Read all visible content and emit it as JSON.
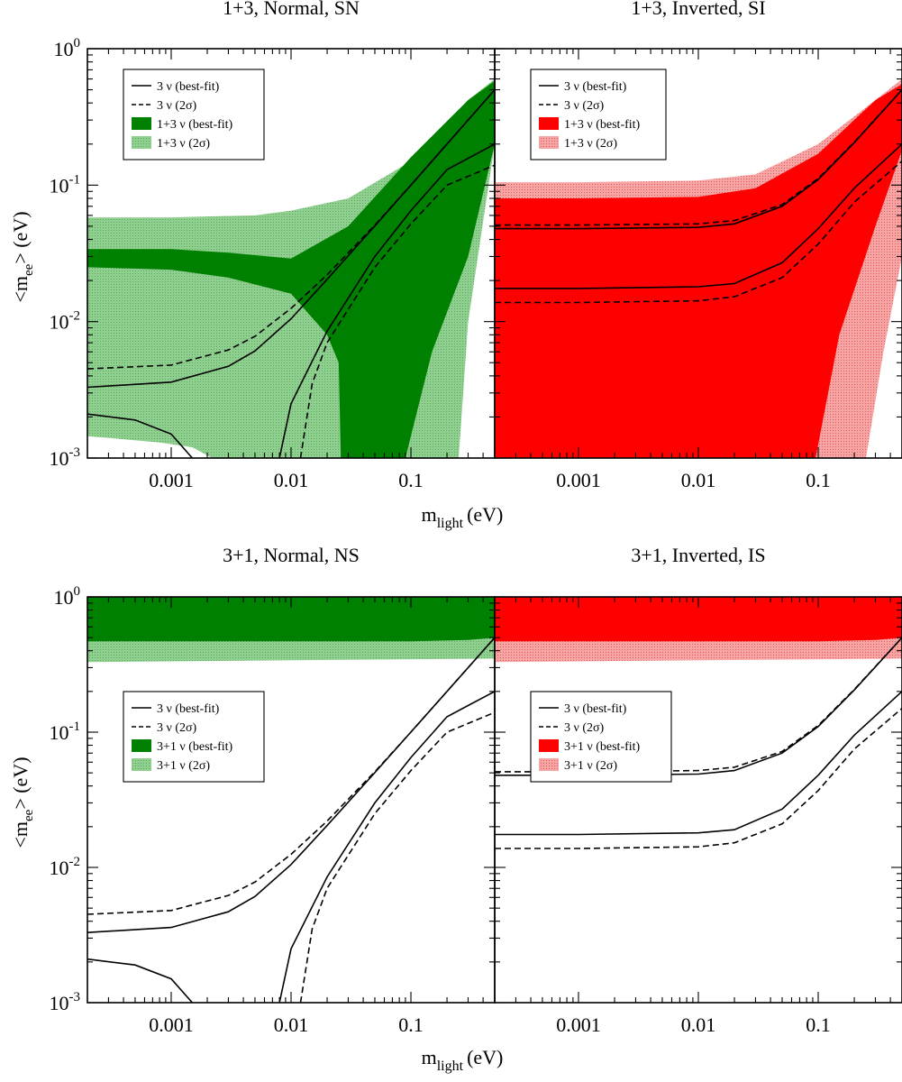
{
  "colors": {
    "green_dark": "#008000",
    "green_light": "#8fcf8f",
    "red_dark": "#ff0000",
    "red_light": "#f7a4a4"
  },
  "figure": {
    "xlabel_main": "m",
    "xlabel_sub": "light",
    "xlabel_unit": "(eV)",
    "ylabel_main": "<m",
    "ylabel_sub": "ee",
    "ylabel_unit": "> (eV)"
  },
  "chart_data": [
    {
      "type": "area",
      "title": "1+3, Normal, SN",
      "xscale": "log",
      "yscale": "log",
      "xlim": [
        0.0002,
        0.5
      ],
      "ylim": [
        0.001,
        1
      ],
      "xticks": [
        "0.001",
        "0.01",
        "0.1"
      ],
      "yticks": [
        {
          "base": "10",
          "exp": "-3"
        },
        {
          "base": "10",
          "exp": "-2"
        },
        {
          "base": "10",
          "exp": "-1"
        },
        {
          "base": "10",
          "exp": "0"
        }
      ],
      "legend": {
        "position": "top-left",
        "entries": [
          "3 ν (best-fit)",
          "3 ν (2σ)",
          "1+3 ν (best-fit)",
          "1+3 ν (2σ)"
        ]
      },
      "fill": "green",
      "bands": {
        "light_2sigma": {
          "x": [
            0.0002,
            0.001,
            0.005,
            0.01,
            0.03,
            0.1,
            0.2,
            0.3,
            0.5
          ],
          "upper": [
            0.058,
            0.058,
            0.06,
            0.065,
            0.08,
            0.15,
            0.28,
            0.42,
            0.6
          ],
          "gap_upper": [
            0.0014,
            0.0012,
            0.001,
            0.001,
            0.001,
            0.001,
            0.001,
            0.001,
            0.001
          ],
          "gap_x_end": 0.003,
          "right_edge_at_floor": 0.25
        },
        "dark_bestfit": {
          "x": [
            0.0002,
            0.001,
            0.003,
            0.01,
            0.03,
            0.1,
            0.3,
            0.5
          ],
          "upper": [
            0.034,
            0.034,
            0.032,
            0.029,
            0.05,
            0.16,
            0.42,
            0.58
          ],
          "lower": [
            0.025,
            0.024,
            0.02,
            0.012,
            0.0012,
            0.001,
            0.03,
            0.2
          ],
          "left_edge_at_floor": 0.026,
          "right_edge_at_floor": 0.09
        }
      },
      "series": [
        {
          "name": "3 ν (best-fit) upper",
          "style": "solid",
          "x": [
            0.0002,
            0.001,
            0.003,
            0.005,
            0.01,
            0.02,
            0.05,
            0.1,
            0.2,
            0.5
          ],
          "y": [
            0.0033,
            0.0036,
            0.0047,
            0.0061,
            0.0105,
            0.0204,
            0.0502,
            0.1001,
            0.2001,
            0.5
          ]
        },
        {
          "name": "3 ν (2σ) upper",
          "style": "dashed",
          "x": [
            0.0002,
            0.001,
            0.003,
            0.005,
            0.01,
            0.02,
            0.05,
            0.1,
            0.2,
            0.5
          ],
          "y": [
            0.0045,
            0.0048,
            0.0062,
            0.0078,
            0.0125,
            0.022,
            0.051,
            0.1,
            0.2,
            0.5
          ]
        },
        {
          "name": "3 ν (best-fit) lower",
          "style": "solid",
          "x": [
            0.0002,
            0.0005,
            0.001,
            0.0015,
            0.00075,
            0.008,
            0.01,
            0.02,
            0.05,
            0.1,
            0.2,
            0.5
          ],
          "y": [
            0.0021,
            0.0019,
            0.0015,
            0.001,
            null,
            0.001,
            0.0025,
            0.0085,
            0.03,
            0.065,
            0.13,
            0.2
          ]
        },
        {
          "name": "3 ν (2σ) lower",
          "style": "dashed",
          "x": [
            0.012,
            0.015,
            0.02,
            0.05,
            0.1,
            0.2,
            0.5
          ],
          "y": [
            0.001,
            0.0035,
            0.007,
            0.025,
            0.052,
            0.1,
            0.14
          ]
        }
      ]
    },
    {
      "type": "area",
      "title": "1+3, Inverted, SI",
      "xscale": "log",
      "yscale": "log",
      "xlim": [
        0.0002,
        0.5
      ],
      "ylim": [
        0.001,
        1
      ],
      "xticks": [
        "0.001",
        "0.01",
        "0.1"
      ],
      "legend": {
        "position": "top-left",
        "entries": [
          "3 ν (best-fit)",
          "3 ν (2σ)",
          "1+3 ν  (best-fit)",
          "1+3 ν (2σ)"
        ]
      },
      "fill": "red",
      "bands": {
        "light_2sigma": {
          "x": [
            0.0002,
            0.001,
            0.01,
            0.03,
            0.1,
            0.3,
            0.5
          ],
          "upper": [
            0.105,
            0.105,
            0.108,
            0.12,
            0.2,
            0.42,
            0.6
          ],
          "right_edge_at_floor": 0.25
        },
        "dark_bestfit": {
          "x": [
            0.0002,
            0.001,
            0.01,
            0.03,
            0.1,
            0.3,
            0.5
          ],
          "upper": [
            0.08,
            0.08,
            0.082,
            0.095,
            0.17,
            0.42,
            0.55
          ],
          "right_edge_at_floor": 0.095
        }
      },
      "series": [
        {
          "name": "3 ν (best-fit) upper",
          "style": "solid",
          "x": [
            0.0002,
            0.001,
            0.01,
            0.02,
            0.05,
            0.1,
            0.2,
            0.5
          ],
          "y": [
            0.048,
            0.048,
            0.049,
            0.052,
            0.07,
            0.11,
            0.205,
            0.5
          ]
        },
        {
          "name": "3 ν (2σ) upper",
          "style": "dashed",
          "x": [
            0.0002,
            0.001,
            0.01,
            0.02,
            0.05,
            0.1,
            0.2,
            0.5
          ],
          "y": [
            0.051,
            0.051,
            0.052,
            0.055,
            0.072,
            0.112,
            0.207,
            0.5
          ]
        },
        {
          "name": "3 ν (best-fit) lower",
          "style": "solid",
          "x": [
            0.0002,
            0.001,
            0.01,
            0.02,
            0.05,
            0.1,
            0.2,
            0.5
          ],
          "y": [
            0.0175,
            0.0175,
            0.018,
            0.019,
            0.027,
            0.048,
            0.095,
            0.2
          ]
        },
        {
          "name": "3 ν (2σ) lower",
          "style": "dashed",
          "x": [
            0.0002,
            0.001,
            0.01,
            0.02,
            0.05,
            0.1,
            0.2,
            0.5
          ],
          "y": [
            0.0138,
            0.0138,
            0.0142,
            0.0152,
            0.021,
            0.037,
            0.075,
            0.15
          ]
        }
      ]
    },
    {
      "type": "area",
      "title": "3+1, Normal, NS",
      "xscale": "log",
      "yscale": "log",
      "xlim": [
        0.0002,
        0.5
      ],
      "ylim": [
        0.001,
        1
      ],
      "xticks": [
        "0.001",
        "0.01",
        "0.1"
      ],
      "yticks": [
        {
          "base": "10",
          "exp": "-3"
        },
        {
          "base": "10",
          "exp": "-2"
        },
        {
          "base": "10",
          "exp": "-1"
        },
        {
          "base": "10",
          "exp": "0"
        }
      ],
      "legend": {
        "position": "center-left",
        "entries": [
          "3 ν (best-fit)",
          "3 ν (2σ)",
          "3+1 ν (best-fit)",
          "3+1 ν (2σ)"
        ]
      },
      "fill": "green",
      "bands": {
        "light_2sigma": {
          "x": [
            0.0002,
            0.5
          ],
          "lower": [
            0.33,
            0.35
          ],
          "upper": [
            1,
            1
          ]
        },
        "dark_bestfit": {
          "x": [
            0.0002,
            0.1,
            0.3,
            0.5
          ],
          "lower": [
            0.47,
            0.47,
            0.48,
            0.5
          ],
          "upper": [
            1,
            1,
            1,
            1
          ]
        }
      },
      "series": [
        {
          "name": "3 ν (best-fit) upper",
          "style": "solid",
          "x": [
            0.0002,
            0.001,
            0.003,
            0.005,
            0.01,
            0.02,
            0.05,
            0.1,
            0.2,
            0.5
          ],
          "y": [
            0.0033,
            0.0036,
            0.0047,
            0.0061,
            0.0105,
            0.0204,
            0.0502,
            0.1001,
            0.2001,
            0.5
          ]
        },
        {
          "name": "3 ν (2σ) upper",
          "style": "dashed",
          "x": [
            0.0002,
            0.001,
            0.003,
            0.005,
            0.01,
            0.02,
            0.05,
            0.1,
            0.2,
            0.5
          ],
          "y": [
            0.0045,
            0.0048,
            0.0062,
            0.0078,
            0.0125,
            0.022,
            0.051,
            0.1,
            0.2,
            0.5
          ]
        },
        {
          "name": "3 ν (best-fit) lower",
          "style": "solid",
          "x": [
            0.0002,
            0.0005,
            0.001,
            0.0015,
            0.00075,
            0.008,
            0.01,
            0.02,
            0.05,
            0.1,
            0.2,
            0.5
          ],
          "y": [
            0.0021,
            0.0019,
            0.0015,
            0.001,
            null,
            0.001,
            0.0025,
            0.0085,
            0.03,
            0.065,
            0.13,
            0.2
          ]
        },
        {
          "name": "3 ν (2σ) lower",
          "style": "dashed",
          "x": [
            0.012,
            0.015,
            0.02,
            0.05,
            0.1,
            0.2,
            0.5
          ],
          "y": [
            0.001,
            0.0035,
            0.007,
            0.025,
            0.052,
            0.1,
            0.14
          ]
        }
      ]
    },
    {
      "type": "area",
      "title": "3+1, Inverted, IS",
      "xscale": "log",
      "yscale": "log",
      "xlim": [
        0.0002,
        0.5
      ],
      "ylim": [
        0.001,
        1
      ],
      "xticks": [
        "0.001",
        "0.01",
        "0.1"
      ],
      "legend": {
        "position": "center-left",
        "entries": [
          "3 ν (best-fit)",
          "3 ν (2σ)",
          "3+1 ν (best-fit)",
          "3+1 ν (2σ)"
        ]
      },
      "fill": "red",
      "bands": {
        "light_2sigma": {
          "x": [
            0.0002,
            0.5
          ],
          "lower": [
            0.33,
            0.35
          ],
          "upper": [
            1,
            1
          ]
        },
        "dark_bestfit": {
          "x": [
            0.0002,
            0.1,
            0.3,
            0.5
          ],
          "lower": [
            0.47,
            0.47,
            0.48,
            0.5
          ],
          "upper": [
            1,
            1,
            1,
            1
          ]
        }
      },
      "series": [
        {
          "name": "3 ν (best-fit) upper",
          "style": "solid",
          "x": [
            0.0002,
            0.001,
            0.01,
            0.02,
            0.05,
            0.1,
            0.2,
            0.5
          ],
          "y": [
            0.048,
            0.048,
            0.049,
            0.052,
            0.07,
            0.11,
            0.205,
            0.5
          ]
        },
        {
          "name": "3 ν (2σ) upper",
          "style": "dashed",
          "x": [
            0.0002,
            0.001,
            0.01,
            0.02,
            0.05,
            0.1,
            0.2,
            0.5
          ],
          "y": [
            0.051,
            0.051,
            0.052,
            0.055,
            0.072,
            0.112,
            0.207,
            0.5
          ]
        },
        {
          "name": "3 ν (best-fit) lower",
          "style": "solid",
          "x": [
            0.0002,
            0.001,
            0.01,
            0.02,
            0.05,
            0.1,
            0.2,
            0.5
          ],
          "y": [
            0.0175,
            0.0175,
            0.018,
            0.019,
            0.027,
            0.048,
            0.095,
            0.2
          ]
        },
        {
          "name": "3 ν (2σ) lower",
          "style": "dashed",
          "x": [
            0.0002,
            0.001,
            0.01,
            0.02,
            0.05,
            0.1,
            0.2,
            0.5
          ],
          "y": [
            0.0138,
            0.0138,
            0.0142,
            0.0152,
            0.021,
            0.037,
            0.075,
            0.15
          ]
        }
      ]
    }
  ]
}
